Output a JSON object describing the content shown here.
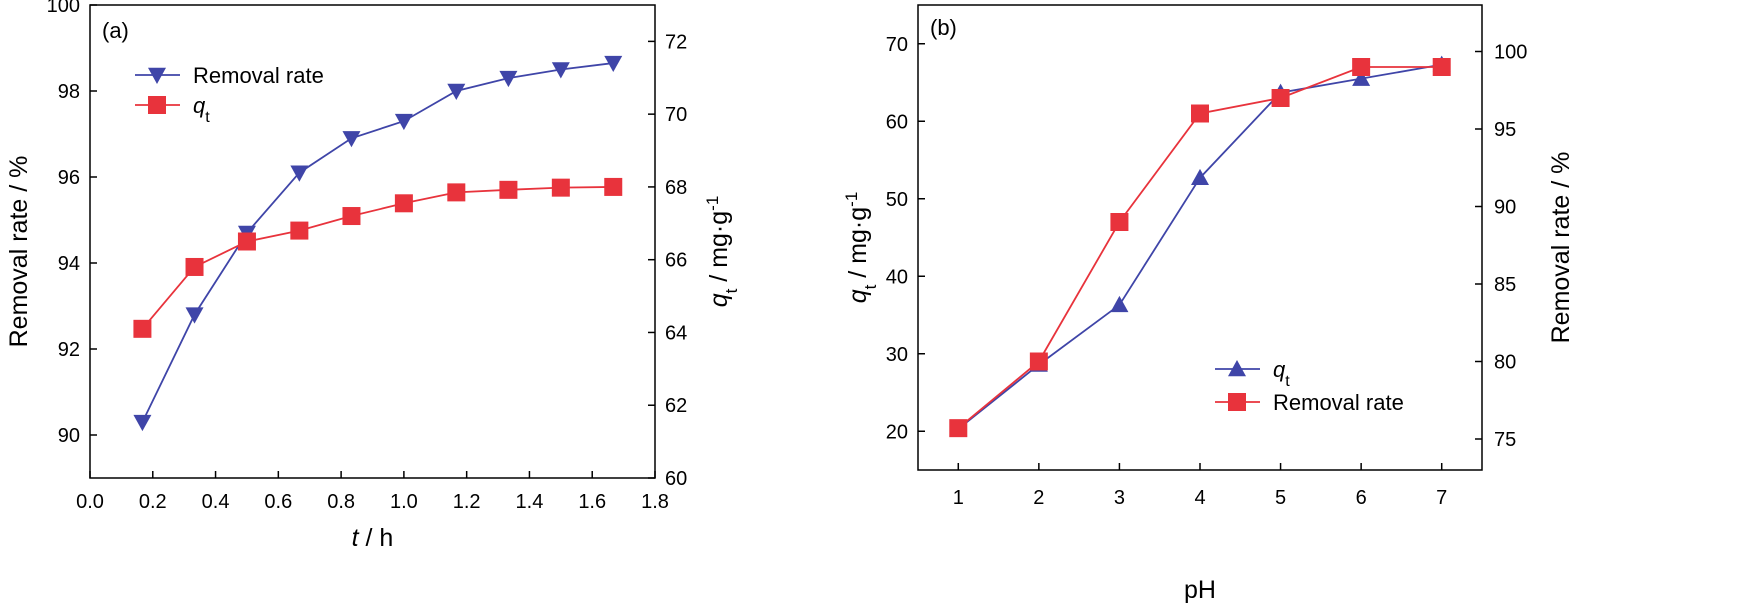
{
  "chart_data": [
    {
      "type": "line",
      "panel_label": "(a)",
      "x": [
        0.167,
        0.333,
        0.5,
        0.667,
        0.833,
        1.0,
        1.167,
        1.333,
        1.5,
        1.667
      ],
      "xlabel_italic": "t",
      "xlabel_rest": " / h",
      "xlim": [
        0.0,
        1.8
      ],
      "xticks": [
        "0.0",
        "0.2",
        "0.4",
        "0.6",
        "0.8",
        "1.0",
        "1.2",
        "1.4",
        "1.6",
        "1.8"
      ],
      "ylabel_left": "Removal rate / %",
      "ylim_left": [
        89,
        100
      ],
      "yticks_left": [
        "90",
        "92",
        "94",
        "96",
        "98",
        "100"
      ],
      "ylabel_right_italic": "q",
      "ylabel_right_sub": "t",
      "ylabel_right_rest": " / mg·g",
      "ylabel_right_sup": "-1",
      "ylim_right": [
        60,
        73
      ],
      "yticks_right": [
        "60",
        "62",
        "64",
        "66",
        "68",
        "70",
        "72"
      ],
      "grid": false,
      "legend_position": "top-left",
      "series": [
        {
          "name": "Removal rate",
          "axis": "left",
          "marker": "triangle-down",
          "color": "#3f45a8",
          "values": [
            90.3,
            92.8,
            94.7,
            96.1,
            96.9,
            97.3,
            98.0,
            98.3,
            98.5,
            98.65
          ]
        },
        {
          "name_italic": "q",
          "name_sub": "t",
          "axis": "right",
          "marker": "square",
          "color": "#e8333c",
          "values": [
            64.1,
            65.8,
            66.5,
            66.8,
            67.2,
            67.55,
            67.85,
            67.92,
            67.98,
            68.0
          ]
        }
      ]
    },
    {
      "type": "line",
      "panel_label": "(b)",
      "x": [
        1,
        2,
        3,
        4,
        5,
        6,
        7
      ],
      "xlabel": "pH",
      "xlim": [
        0.5,
        7.5
      ],
      "xticks": [
        "1",
        "2",
        "3",
        "4",
        "5",
        "6",
        "7"
      ],
      "ylabel_left_italic": "q",
      "ylabel_left_sub": "t",
      "ylabel_left_rest": " / mg·g",
      "ylabel_left_sup": "-1",
      "ylim_left": [
        15,
        75
      ],
      "yticks_left": [
        "20",
        "30",
        "40",
        "50",
        "60",
        "70"
      ],
      "ylabel_right": "Removal rate / %",
      "ylim_right": [
        73,
        103
      ],
      "yticks_right": [
        "75",
        "80",
        "85",
        "90",
        "95",
        "100"
      ],
      "grid": false,
      "legend_position": "bottom-right",
      "series": [
        {
          "name_italic": "q",
          "name_sub": "t",
          "axis": "left",
          "marker": "triangle-up",
          "color": "#3f45a8",
          "values": [
            20.3,
            28.6,
            36.3,
            52.7,
            63.7,
            65.5,
            67.3
          ]
        },
        {
          "name": "Removal rate",
          "axis": "right",
          "marker": "square",
          "color": "#e8333c",
          "values": [
            75.7,
            80.0,
            89.0,
            96.0,
            97.0,
            99.0,
            99.0
          ]
        }
      ]
    }
  ]
}
